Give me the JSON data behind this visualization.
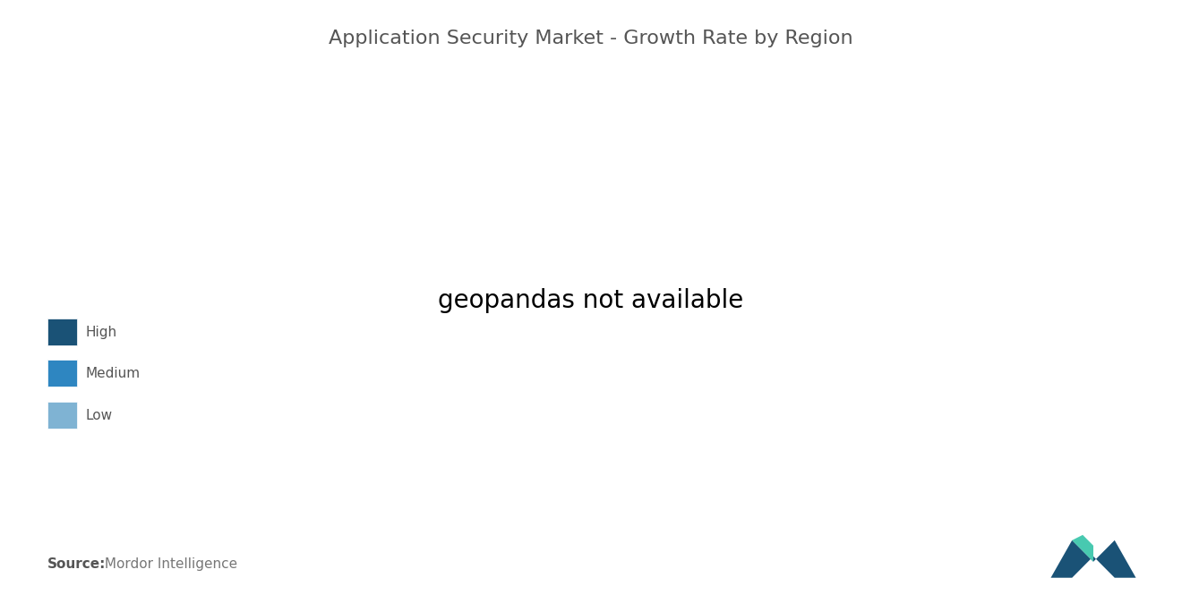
{
  "title": "Application Security Market - Growth Rate by Region",
  "source_label": "Source:",
  "source_text": " Mordor Intelligence",
  "legend_entries": [
    {
      "label": "High",
      "color": "#1a5276"
    },
    {
      "label": "Medium",
      "color": "#2e86c1"
    },
    {
      "label": "Low",
      "color": "#7fb3d3"
    }
  ],
  "bg_color": "#ffffff",
  "map_ocean_color": "#ffffff",
  "map_land_default_color": "#aab7b8",
  "title_fontsize": 16,
  "title_color": "#555555",
  "source_fontsize": 11
}
